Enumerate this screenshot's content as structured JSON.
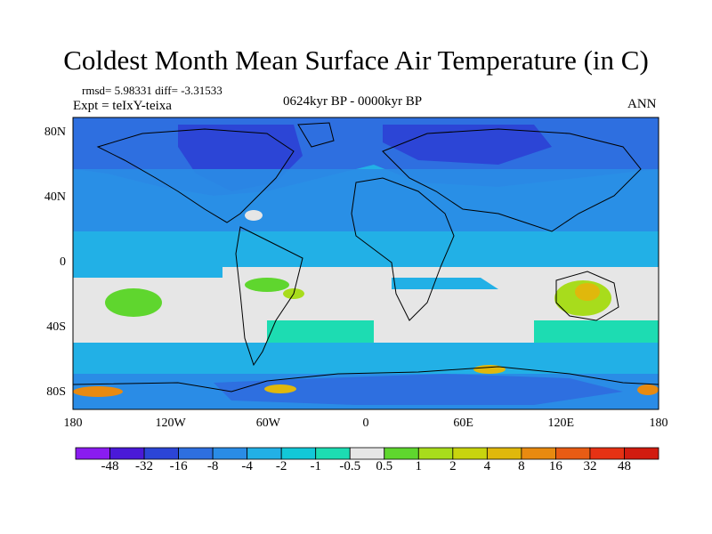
{
  "title": "Coldest Month Mean Surface Air Temperature (in C)",
  "stats": "rmsd= 5.98331 diff= -3.31533",
  "experiment": "Expt = teIxY-teixa",
  "period": "0624kyr BP - 0000kyr BP",
  "season": "ANN",
  "lat_ticks": [
    {
      "label": "80N",
      "value": 80
    },
    {
      "label": "40N",
      "value": 40
    },
    {
      "label": "0",
      "value": 0
    },
    {
      "label": "40S",
      "value": -40
    },
    {
      "label": "80S",
      "value": -80
    }
  ],
  "lon_ticks": [
    {
      "label": "180",
      "value": -180
    },
    {
      "label": "120W",
      "value": -120
    },
    {
      "label": "60W",
      "value": -60
    },
    {
      "label": "0",
      "value": 0
    },
    {
      "label": "60E",
      "value": 60
    },
    {
      "label": "120E",
      "value": 120
    },
    {
      "label": "180",
      "value": 180
    }
  ],
  "colorbar": {
    "labels": [
      "-48",
      "-32",
      "-16",
      "-8",
      "-4",
      "-2",
      "-1",
      "-0.5",
      "0.5",
      "1",
      "2",
      "4",
      "8",
      "16",
      "32",
      "48"
    ],
    "colors": [
      "#8a1cf0",
      "#4a19d8",
      "#2c45d6",
      "#2e6fe0",
      "#2a8ce6",
      "#22b0e6",
      "#12c8d8",
      "#1ddcb2",
      "#e6e6e6",
      "#5fd62e",
      "#a8dc1c",
      "#c8d40e",
      "#e0b80c",
      "#e88a10",
      "#e85c14",
      "#e63214",
      "#d21c10"
    ]
  },
  "chart_data": {
    "type": "heatmap",
    "title": "Coldest Month Mean Surface Air Temperature (in C)",
    "xlim": [
      -180,
      180
    ],
    "ylim": [
      -90,
      90
    ],
    "levels": [
      -48,
      -32,
      -16,
      -8,
      -4,
      -2,
      -1,
      -0.5,
      0.5,
      1,
      2,
      4,
      8,
      16,
      32,
      48
    ]
  }
}
